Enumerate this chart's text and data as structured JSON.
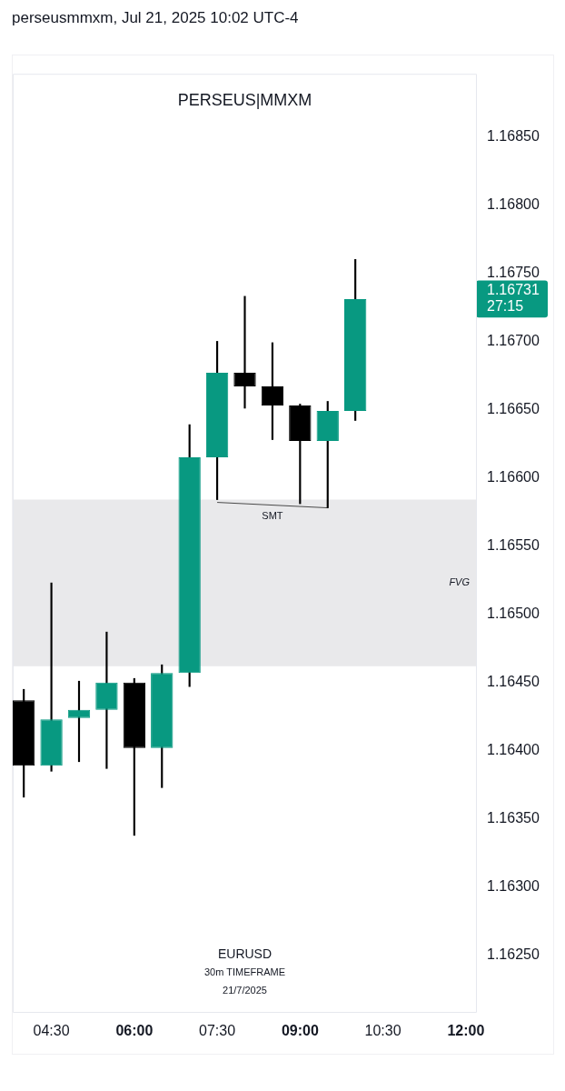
{
  "chart_data": {
    "type": "candlestick",
    "title": "PERSEUS|MMXM",
    "subtitle": "perseusmmxm, Jul 21, 2025 10:02 UTC-4",
    "x": [
      "2025-07-21T04:00",
      "2025-07-21T04:30",
      "2025-07-21T05:00",
      "2025-07-21T05:30",
      "2025-07-21T06:00",
      "2025-07-21T06:30",
      "2025-07-21T07:00",
      "2025-07-21T07:30",
      "2025-07-21T08:00",
      "2025-07-21T08:30",
      "2025-07-21T09:00",
      "2025-07-21T09:30",
      "2025-07-21T10:00"
    ],
    "ohlc": [
      [
        1.16437,
        1.16445,
        1.16366,
        1.16389
      ],
      [
        1.16389,
        1.16523,
        1.16385,
        1.16423
      ],
      [
        1.16424,
        1.16451,
        1.16392,
        1.1643
      ],
      [
        1.1643,
        1.16487,
        1.16387,
        1.1645
      ],
      [
        1.1645,
        1.16453,
        1.16338,
        1.16402
      ],
      [
        1.16402,
        1.16463,
        1.16373,
        1.16457
      ],
      [
        1.16457,
        1.16639,
        1.16447,
        1.16615
      ],
      [
        1.16615,
        1.167,
        1.16584,
        1.16677
      ],
      [
        1.16677,
        1.16733,
        1.16651,
        1.16667
      ],
      [
        1.16667,
        1.16699,
        1.16628,
        1.16653
      ],
      [
        1.16653,
        1.16654,
        1.16581,
        1.16627
      ],
      [
        1.16627,
        1.16656,
        1.16578,
        1.16649
      ],
      [
        1.16649,
        1.1676,
        1.16642,
        1.16731
      ]
    ],
    "colors": [
      "#000000",
      "#089981",
      "#089981",
      "#089981",
      "#000000",
      "#089981",
      "#089981",
      "#089981",
      "#000000",
      "#000000",
      "#000000",
      "#089981",
      "#089981"
    ],
    "series": [
      {
        "type": "line",
        "name": "SMT",
        "x": [
          "2025-07-21T07:30",
          "2025-07-21T09:30"
        ],
        "values": [
          1.16582,
          1.16578
        ],
        "color": "#4a4a4a"
      }
    ],
    "xlim": [
      "2025-07-21T03:48",
      "2025-07-21T12:12"
    ],
    "xticks": [
      {
        "value": "2025-07-21T04:30",
        "label": "04:30"
      },
      {
        "value": "2025-07-21T06:00",
        "label": "06:00"
      },
      {
        "value": "2025-07-21T07:30",
        "label": "07:30"
      },
      {
        "value": "2025-07-21T09:00",
        "label": "09:00"
      },
      {
        "value": "2025-07-21T10:30",
        "label": "10:30"
      },
      {
        "value": "2025-07-21T12:00",
        "label": "12:00"
      }
    ],
    "ylim": [
      1.16208,
      1.16896
    ],
    "yticks": [
      {
        "value": 1.1625,
        "label": "1.16250"
      },
      {
        "value": 1.163,
        "label": "1.16300"
      },
      {
        "value": 1.1635,
        "label": "1.16350"
      },
      {
        "value": 1.164,
        "label": "1.16400"
      },
      {
        "value": 1.1645,
        "label": "1.16450"
      },
      {
        "value": 1.165,
        "label": "1.16500"
      },
      {
        "value": 1.1655,
        "label": "1.16550"
      },
      {
        "value": 1.166,
        "label": "1.16600"
      },
      {
        "value": 1.1665,
        "label": "1.16650"
      },
      {
        "value": 1.167,
        "label": "1.16700"
      },
      {
        "value": 1.16731,
        "label": "1.16731\n27:15"
      },
      {
        "value": 1.1675,
        "label": "1.16750"
      },
      {
        "value": 1.168,
        "label": "1.16800"
      },
      {
        "value": 1.1685,
        "label": "1.16850"
      }
    ],
    "bands": [
      {
        "axis": "y",
        "from": 1.16462,
        "to": 1.16584,
        "label": "FVG",
        "color": "#e9e9eb"
      }
    ],
    "annotations": [
      "EURUSD",
      "30m TIMEFRAME",
      "21/7/2025"
    ],
    "grid": false,
    "legend": false
  }
}
